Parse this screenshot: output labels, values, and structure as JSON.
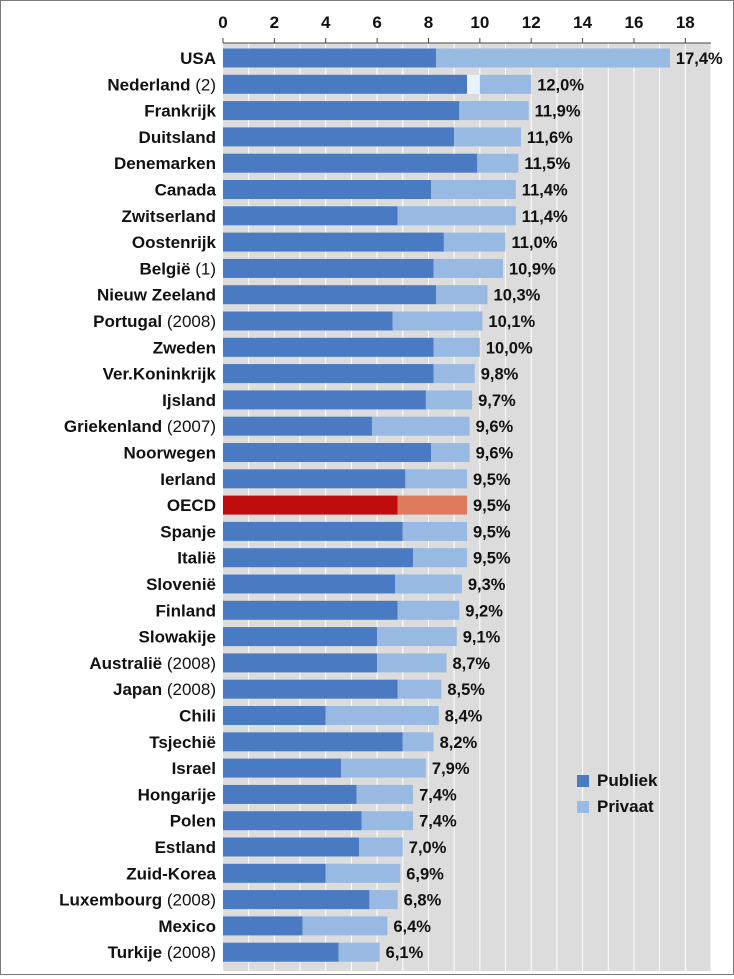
{
  "colors": {
    "publiek": "#4a7bc2",
    "privaat": "#97b9e2",
    "oecd_publiek": "#c00c0c",
    "oecd_privaat": "#e07a5f",
    "plot_bg": "#dcdcdc",
    "grid": "#ffffff"
  },
  "chart_data": {
    "type": "bar",
    "orientation": "horizontal",
    "stacked": true,
    "xlim": [
      0,
      19
    ],
    "x_ticks": [
      "0",
      "2",
      "4",
      "6",
      "8",
      "10",
      "12",
      "14",
      "16",
      "18"
    ],
    "x_tick_values": [
      0,
      2,
      4,
      6,
      8,
      10,
      12,
      14,
      16,
      18
    ],
    "grid": true,
    "legend": {
      "placement": "right",
      "entries": [
        "Publiek",
        "Privaat"
      ]
    },
    "categories": [
      {
        "name": "USA",
        "note": "",
        "publiek": 8.3,
        "privaat": 9.1,
        "total_label": "17,4%"
      },
      {
        "name": "Nederland",
        "note": "(2)",
        "publiek": 9.5,
        "privaat": 2.5,
        "total_label": "12,0%",
        "gap": true
      },
      {
        "name": "Frankrijk",
        "note": "",
        "publiek": 9.2,
        "privaat": 2.7,
        "total_label": "11,9%"
      },
      {
        "name": "Duitsland",
        "note": "",
        "publiek": 9.0,
        "privaat": 2.6,
        "total_label": "11,6%"
      },
      {
        "name": "Denemarken",
        "note": "",
        "publiek": 9.9,
        "privaat": 1.6,
        "total_label": "11,5%"
      },
      {
        "name": "Canada",
        "note": "",
        "publiek": 8.1,
        "privaat": 3.3,
        "total_label": "11,4%"
      },
      {
        "name": "Zwitserland",
        "note": "",
        "publiek": 6.8,
        "privaat": 4.6,
        "total_label": "11,4%"
      },
      {
        "name": "Oostenrijk",
        "note": "",
        "publiek": 8.6,
        "privaat": 2.4,
        "total_label": "11,0%"
      },
      {
        "name": "België",
        "note": "(1)",
        "publiek": 8.2,
        "privaat": 2.7,
        "total_label": "10,9%"
      },
      {
        "name": "Nieuw Zeeland",
        "note": "",
        "publiek": 8.3,
        "privaat": 2.0,
        "total_label": "10,3%"
      },
      {
        "name": "Portugal",
        "note": "(2008)",
        "publiek": 6.6,
        "privaat": 3.5,
        "total_label": "10,1%"
      },
      {
        "name": "Zweden",
        "note": "",
        "publiek": 8.2,
        "privaat": 1.8,
        "total_label": "10,0%"
      },
      {
        "name": "Ver.Koninkrijk",
        "note": "",
        "publiek": 8.2,
        "privaat": 1.6,
        "total_label": "9,8%"
      },
      {
        "name": "Ijsland",
        "note": "",
        "publiek": 7.9,
        "privaat": 1.8,
        "total_label": "9,7%"
      },
      {
        "name": "Griekenland",
        "note": "(2007)",
        "publiek": 5.8,
        "privaat": 3.8,
        "total_label": "9,6%"
      },
      {
        "name": "Noorwegen",
        "note": "",
        "publiek": 8.1,
        "privaat": 1.5,
        "total_label": "9,6%"
      },
      {
        "name": "Ierland",
        "note": "",
        "publiek": 7.1,
        "privaat": 2.4,
        "total_label": "9,5%"
      },
      {
        "name": "OECD",
        "note": "",
        "publiek": 6.8,
        "privaat": 2.7,
        "total_label": "9,5%",
        "highlight": true
      },
      {
        "name": "Spanje",
        "note": "",
        "publiek": 7.0,
        "privaat": 2.5,
        "total_label": "9,5%"
      },
      {
        "name": "Italië",
        "note": "",
        "publiek": 7.4,
        "privaat": 2.1,
        "total_label": "9,5%"
      },
      {
        "name": "Slovenië",
        "note": "",
        "publiek": 6.7,
        "privaat": 2.6,
        "total_label": "9,3%"
      },
      {
        "name": "Finland",
        "note": "",
        "publiek": 6.8,
        "privaat": 2.4,
        "total_label": "9,2%"
      },
      {
        "name": "Slowakije",
        "note": "",
        "publiek": 6.0,
        "privaat": 3.1,
        "total_label": "9,1%"
      },
      {
        "name": "Australië",
        "note": "(2008)",
        "publiek": 6.0,
        "privaat": 2.7,
        "total_label": "8,7%"
      },
      {
        "name": "Japan",
        "note": "(2008)",
        "publiek": 6.8,
        "privaat": 1.7,
        "total_label": "8,5%"
      },
      {
        "name": "Chili",
        "note": "",
        "publiek": 4.0,
        "privaat": 4.4,
        "total_label": "8,4%"
      },
      {
        "name": "Tsjechië",
        "note": "",
        "publiek": 7.0,
        "privaat": 1.2,
        "total_label": "8,2%"
      },
      {
        "name": "Israel",
        "note": "",
        "publiek": 4.6,
        "privaat": 3.3,
        "total_label": "7,9%"
      },
      {
        "name": "Hongarije",
        "note": "",
        "publiek": 5.2,
        "privaat": 2.2,
        "total_label": "7,4%"
      },
      {
        "name": "Polen",
        "note": "",
        "publiek": 5.4,
        "privaat": 2.0,
        "total_label": "7,4%"
      },
      {
        "name": "Estland",
        "note": "",
        "publiek": 5.3,
        "privaat": 1.7,
        "total_label": "7,0%"
      },
      {
        "name": "Zuid-Korea",
        "note": "",
        "publiek": 4.0,
        "privaat": 2.9,
        "total_label": "6,9%"
      },
      {
        "name": "Luxembourg",
        "note": "(2008)",
        "publiek": 5.7,
        "privaat": 1.1,
        "total_label": "6,8%"
      },
      {
        "name": "Mexico",
        "note": "",
        "publiek": 3.1,
        "privaat": 3.3,
        "total_label": "6,4%"
      },
      {
        "name": "Turkije",
        "note": "(2008)",
        "publiek": 4.5,
        "privaat": 1.6,
        "total_label": "6,1%"
      }
    ]
  }
}
